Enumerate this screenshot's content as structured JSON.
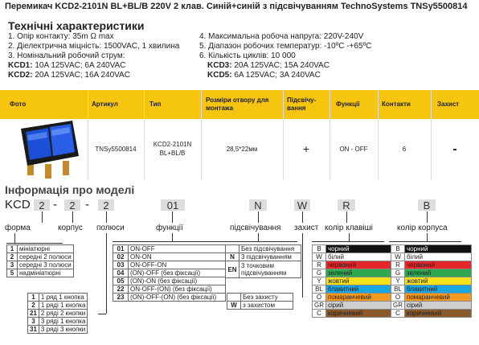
{
  "title": "Перемикач KCD2-2101N BL+BL/B 220V 2 клав. Синій+синій з підсвічуванням TechnoSystems TNSy5500814",
  "section_title": "Технічні характеристики",
  "specs_left": [
    "1. Опір контакту: 35m Ω  max",
    "2. Діелектрична міцність:  1500VAC, 1 хвилина",
    "3. Номінальний робочий струм:"
  ],
  "specs_right": [
    "4. Максимальна робоча напруга: 220V-240V",
    "5. Діапазон робочих температур: -10ºC -+65ºC",
    "6. Кількість циклів: 10 000"
  ],
  "currents_left": [
    {
      "model": "KCD1:",
      "value": " 10A 125VAC; 6A 240VAC"
    },
    {
      "model": "KCD2:",
      "value": " 20A 125VAC; 16A 240VAC"
    }
  ],
  "currents_right": [
    {
      "model": "KCD3:",
      "value": " 20A 125VAC; 15A 240VAC"
    },
    {
      "model": "KCD5:",
      "value": " 6A 125VAC; 3A 240VAC"
    }
  ],
  "product_table": {
    "headers": [
      "Фото",
      "Артикул",
      "Тип",
      "Розміри отвору для монтажа",
      "Підсвічу-вання",
      "Функції",
      "Контакти",
      "Захист"
    ],
    "row": {
      "article": "TNSy5500814",
      "type": "KCD2-2101N BL+BL/B",
      "size": "28,5*22мм",
      "light": "+",
      "function": "ON - OFF",
      "contacts": "6",
      "protection": "-"
    }
  },
  "model_info_title": "Інформація про моделі",
  "code": {
    "prefix": "KCD",
    "boxes": [
      "2",
      "2",
      "2",
      "01",
      "N",
      "W",
      "R",
      "B"
    ],
    "sep": "-"
  },
  "code_labels": [
    "форма",
    "корпус",
    "полюси",
    "функції",
    "підсвічування",
    "захист",
    "колір клавіші",
    "колір корпуса"
  ],
  "forma": [
    [
      "1",
      "мініатюрні"
    ],
    [
      "2",
      "середні 2 полюси"
    ],
    [
      "3",
      "середні 3 полюси"
    ],
    [
      "5",
      "надмініатюрні"
    ]
  ],
  "poles": [
    [
      "1",
      "1 ряд 1 кнопка"
    ],
    [
      "2",
      "1 ряді 1 кнопка"
    ],
    [
      "21",
      "2 ряді 2 кнопки"
    ],
    [
      "3",
      "3 ряді 1 кнопка"
    ],
    [
      "31",
      "3 ряді 3 кнопки"
    ]
  ],
  "functions": [
    [
      "01",
      "ON-OFF"
    ],
    [
      "02",
      "ON-ON"
    ],
    [
      "03",
      "ON-OFF-ON"
    ],
    [
      "04",
      "(ON)-OFF (без фіксації)"
    ],
    [
      "05",
      "(ON)-ON (без фіксації)"
    ],
    [
      "22",
      "ON-OFF-(ON) (без фіксації)"
    ],
    [
      "23",
      "(ON)-OFF-(ON) (без фіксації)"
    ]
  ],
  "light": [
    [
      "",
      "Без підсвічування"
    ],
    [
      "N",
      "3 підсвічуванням"
    ],
    [
      "EN",
      "3 точковим підсвічуванням"
    ]
  ],
  "protection": [
    [
      "",
      "Без захисту"
    ],
    [
      "W",
      "з захистом"
    ]
  ],
  "key_colors": [
    {
      "k": "B",
      "name": "чорний",
      "color": "#111111",
      "text": "#ffffff"
    },
    {
      "k": "W",
      "name": "білий",
      "color": "#ffffff",
      "text": "#222222"
    },
    {
      "k": "R",
      "name": "червоний",
      "color": "#e5262a",
      "text": "#222222"
    },
    {
      "k": "G",
      "name": "зелений",
      "color": "#2fa84f",
      "text": "#222222"
    },
    {
      "k": "Y",
      "name": "жовтий",
      "color": "#f4e11a",
      "text": "#222222"
    },
    {
      "k": "BL",
      "name": "блакитний",
      "color": "#1aa7e1",
      "text": "#222222"
    },
    {
      "k": "O",
      "name": "помаранчевий",
      "color": "#f39a1e",
      "text": "#222222"
    },
    {
      "k": "GR",
      "name": "сірий",
      "color": "#cfcfcf",
      "text": "#222222"
    },
    {
      "k": "C",
      "name": "коричневий",
      "color": "#8a5a2b",
      "text": "#222222"
    }
  ],
  "body_colors": [
    {
      "k": "B",
      "name": "чорний",
      "color": "#111111",
      "text": "#ffffff"
    },
    {
      "k": "W",
      "name": "білий",
      "color": "#ffffff",
      "text": "#222222"
    },
    {
      "k": "R",
      "name": "червоний",
      "color": "#e5262a",
      "text": "#222222"
    },
    {
      "k": "G",
      "name": "зелений",
      "color": "#2fa84f",
      "text": "#222222"
    },
    {
      "k": "Y",
      "name": "жовтий",
      "color": "#f4e11a",
      "text": "#222222"
    },
    {
      "k": "BL",
      "name": "блакитний",
      "color": "#1aa7e1",
      "text": "#222222"
    },
    {
      "k": "O",
      "name": "помаранчевий",
      "color": "#f39a1e",
      "text": "#222222"
    },
    {
      "k": "GR",
      "name": "сірий",
      "color": "#cfcfcf",
      "text": "#222222"
    },
    {
      "k": "C",
      "name": "коричневий",
      "color": "#8a5a2b",
      "text": "#222222"
    }
  ],
  "accent_color": "#f6c50f"
}
